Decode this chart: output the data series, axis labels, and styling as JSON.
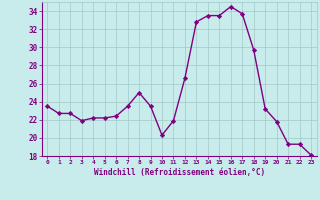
{
  "x": [
    0,
    1,
    2,
    3,
    4,
    5,
    6,
    7,
    8,
    9,
    10,
    11,
    12,
    13,
    14,
    15,
    16,
    17,
    18,
    19,
    20,
    21,
    22,
    23
  ],
  "y": [
    23.5,
    22.7,
    22.7,
    21.9,
    22.2,
    22.2,
    22.4,
    23.5,
    25.0,
    23.5,
    20.3,
    21.9,
    26.6,
    32.8,
    33.5,
    33.5,
    34.5,
    33.7,
    29.7,
    23.2,
    21.8,
    19.3,
    19.3,
    18.1
  ],
  "line_color": "#800080",
  "marker": "D",
  "marker_size": 2.2,
  "linewidth": 1.0,
  "bg_color": "#c8ecec",
  "grid_color": "#a0c8c8",
  "xlabel": "Windchill (Refroidissement éolien,°C)",
  "xlabel_color": "#800080",
  "tick_color": "#800080",
  "ylim": [
    18,
    35
  ],
  "xlim": [
    -0.5,
    23.5
  ],
  "yticks": [
    18,
    20,
    22,
    24,
    26,
    28,
    30,
    32,
    34
  ],
  "xticks": [
    0,
    1,
    2,
    3,
    4,
    5,
    6,
    7,
    8,
    9,
    10,
    11,
    12,
    13,
    14,
    15,
    16,
    17,
    18,
    19,
    20,
    21,
    22,
    23
  ]
}
